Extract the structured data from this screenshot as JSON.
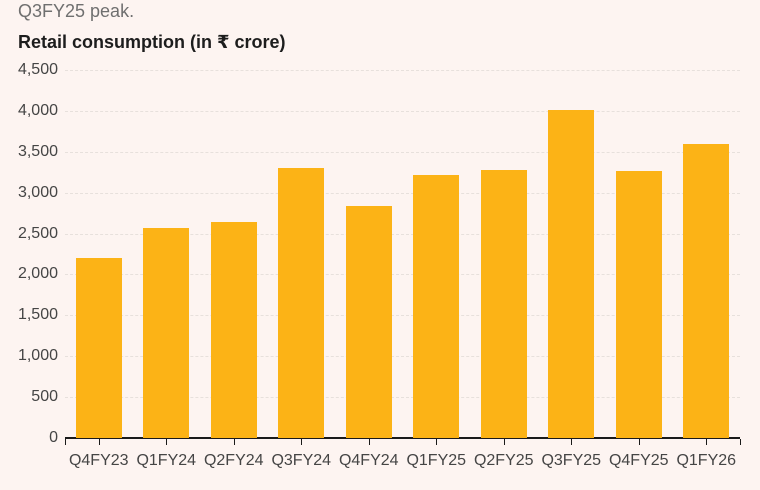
{
  "header": {
    "subtitle_fragment": "Q3FY25 peak.",
    "title": "Retail consumption (in ₹ crore)"
  },
  "chart_data": {
    "type": "bar",
    "title": "Retail consumption (in ₹ crore)",
    "categories": [
      "Q4FY23",
      "Q1FY24",
      "Q2FY24",
      "Q3FY24",
      "Q4FY24",
      "Q1FY25",
      "Q2FY25",
      "Q3FY25",
      "Q4FY25",
      "Q1FY26"
    ],
    "values": [
      2200,
      2570,
      2640,
      3300,
      2840,
      3220,
      3280,
      4010,
      3260,
      3600
    ],
    "xlabel": "",
    "ylabel": "",
    "ylim": [
      0,
      4500
    ],
    "yticks": [
      {
        "value": 0,
        "label": "0"
      },
      {
        "value": 500,
        "label": "500"
      },
      {
        "value": 1000,
        "label": "1,000"
      },
      {
        "value": 1500,
        "label": "1,500"
      },
      {
        "value": 2000,
        "label": "2,000"
      },
      {
        "value": 2500,
        "label": "2,500"
      },
      {
        "value": 3000,
        "label": "3,000"
      },
      {
        "value": 3500,
        "label": "3,500"
      },
      {
        "value": 4000,
        "label": "4,000"
      },
      {
        "value": 4500,
        "label": "4,500"
      }
    ],
    "grid": "horizontal-dashed",
    "legend": "none"
  },
  "colors": {
    "background": "#fdf4f1",
    "bar": "#fcb316",
    "title_text": "#1d1d1d",
    "subtitle_text": "#6f6f6f",
    "axis_label_text": "#454545",
    "gridline": "#e7e0dc",
    "axis_line": "#1a1a1a"
  }
}
